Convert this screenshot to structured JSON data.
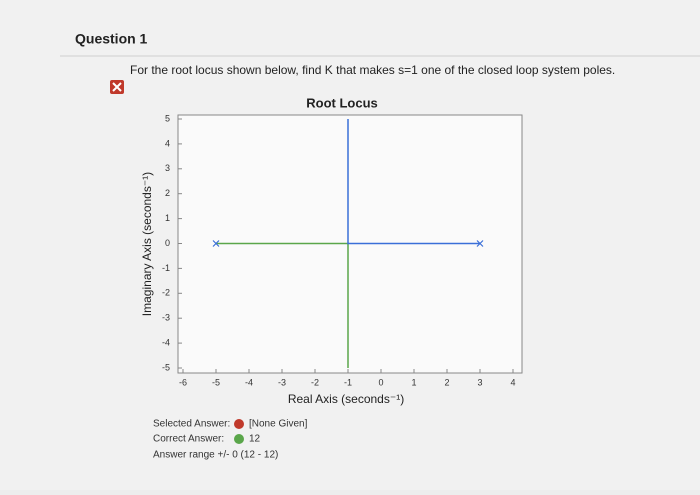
{
  "question": {
    "title": "Question 1",
    "prompt": "For the root locus shown below, find K that makes s=1 one of the closed loop system poles."
  },
  "chart_data": {
    "type": "line",
    "title": "Root Locus",
    "x_label": "Real Axis (seconds⁻¹)",
    "y_label": "Imaginary Axis (seconds⁻¹)",
    "xlim": [
      -6,
      4
    ],
    "ylim": [
      -5,
      5
    ],
    "xticks": [
      -6,
      -5,
      -4,
      -3,
      -2,
      -1,
      0,
      1,
      2,
      3,
      4
    ],
    "yticks": [
      -5,
      -4,
      -3,
      -2,
      -1,
      0,
      1,
      2,
      3,
      4,
      5
    ],
    "grid": false,
    "series": [
      {
        "color": "#5aa64a",
        "x": [
          -5,
          -1,
          -1
        ],
        "y": [
          0,
          0,
          -5
        ]
      },
      {
        "color": "#3a6fd8",
        "x": [
          3,
          -1,
          -1
        ],
        "y": [
          0,
          0,
          5
        ]
      }
    ],
    "poles": {
      "color": "#3a6fd8",
      "x": [
        -5,
        3
      ],
      "y": [
        0,
        0
      ]
    }
  },
  "answers": {
    "selected_label": "Selected Answer:",
    "selected_value": "[None Given]",
    "correct_label": "Correct Answer:",
    "correct_value": "12",
    "range": "Answer range +/- 0 (12 - 12)"
  }
}
